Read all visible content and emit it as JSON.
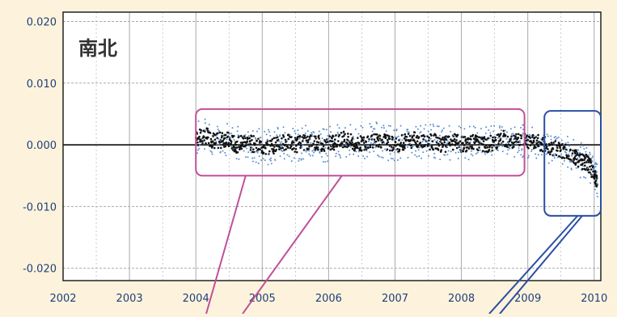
{
  "colors": {
    "background": "#fdf3dc",
    "plot_background": "#ffffff",
    "grid": "#a9a9a9",
    "frame": "#222222",
    "baseline": "#333333",
    "data_points": "#111111",
    "data_scatter": "#5a8fcf",
    "stable_box": "#c0509a",
    "trend_box": "#2a4ea3",
    "tick_text": "#1f3f7a"
  },
  "chart_data": {
    "type": "scatter",
    "title": "南北",
    "xlabel": "",
    "ylabel": "",
    "xlim": [
      2002,
      2010.1
    ],
    "ylim": [
      -0.022,
      0.0215
    ],
    "x_ticks": [
      "2002",
      "2003",
      "2004",
      "2005",
      "2006",
      "2007",
      "2008",
      "2009",
      "2010"
    ],
    "y_ticks": [
      "0.020",
      "0.010",
      "0.000",
      "-0.010",
      "-0.020"
    ],
    "grid": "on",
    "series": [
      {
        "x": [
          2004.0,
          2004.15,
          2004.3,
          2004.45,
          2004.6,
          2004.75,
          2004.9,
          2005.05,
          2005.2,
          2005.35,
          2005.5,
          2005.65,
          2005.8,
          2005.95,
          2006.1,
          2006.25,
          2006.4,
          2006.55,
          2006.7,
          2006.85,
          2007.0,
          2007.15,
          2007.3,
          2007.45,
          2007.6,
          2007.75,
          2007.9,
          2008.05,
          2008.2,
          2008.35,
          2008.5,
          2008.65,
          2008.8,
          2008.95,
          2009.1,
          2009.25,
          2009.4,
          2009.55,
          2009.7,
          2009.8,
          2009.9,
          2010.0,
          2010.05
        ],
        "y": [
          0.001,
          0.0015,
          0.0005,
          0.001,
          0.0,
          0.0005,
          0.0,
          -0.0005,
          0.0,
          0.0005,
          0.0,
          0.0005,
          0.0005,
          0.0,
          0.0005,
          0.001,
          0.0,
          0.0005,
          0.001,
          0.0005,
          0.0,
          0.0005,
          0.001,
          0.0005,
          0.0005,
          0.0,
          0.0005,
          0.0,
          0.0005,
          0.0,
          0.0005,
          0.001,
          0.0005,
          0.0005,
          0.0005,
          0.0,
          -0.0005,
          -0.001,
          -0.002,
          -0.0025,
          -0.003,
          -0.0045,
          -0.006
        ]
      }
    ],
    "annotations": [
      {
        "kind": "box",
        "label": "stable-period",
        "x_range": [
          2004.0,
          2008.95
        ],
        "y_range": [
          -0.005,
          0.0058
        ]
      },
      {
        "kind": "box",
        "label": "recent-trend",
        "x_range": [
          2009.25,
          2010.1
        ],
        "y_range": [
          -0.0115,
          0.0055
        ]
      }
    ]
  }
}
